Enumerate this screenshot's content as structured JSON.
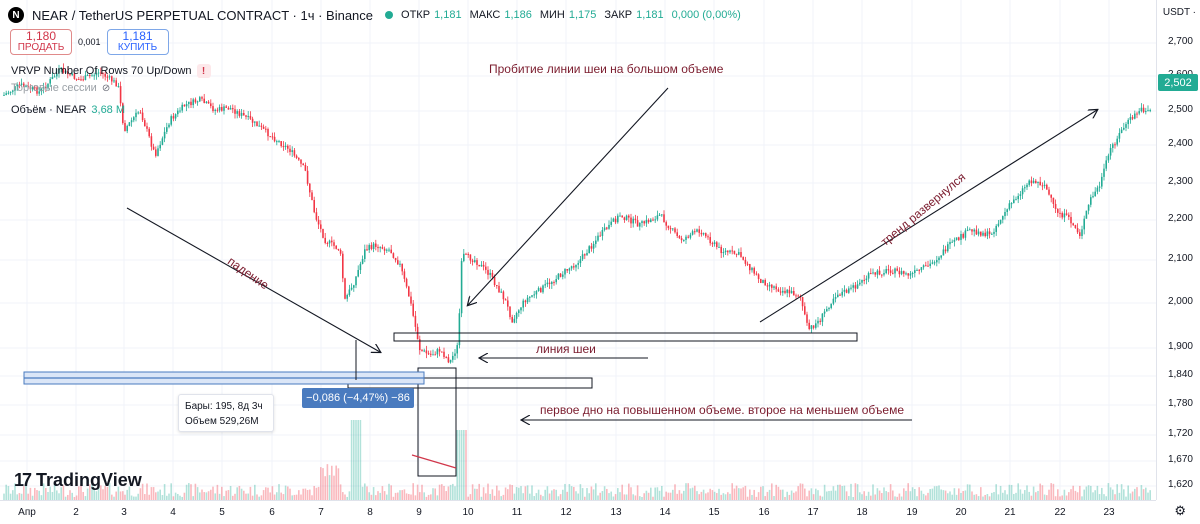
{
  "header": {
    "logo_letter": "N",
    "title": "NEAR / TetherUS PERPETUAL CONTRACT · 1ч · Binance",
    "ohlc": {
      "open_label": "ОТКР",
      "open": "1,181",
      "high_label": "МАКС",
      "high": "1,186",
      "low_label": "МИН",
      "low": "1,175",
      "close_label": "ЗАКР",
      "close": "1,181",
      "change": "0,000 (0,00%)"
    }
  },
  "trade": {
    "sell_price": "1,180",
    "sell_label": "ПРОДАТЬ",
    "spread": "0,001",
    "buy_price": "1,181",
    "buy_label": "КУПИТЬ"
  },
  "indicators": {
    "vrvp": "VRVP Number Of Rows 70 Up/Down",
    "sessions": "Торговые сессии",
    "volume_name": "Объём · NEAR",
    "volume_value": "3,68 M"
  },
  "price_axis": {
    "currency": "USDT ·",
    "ticks": [
      "2,700",
      "2,600",
      "2,500",
      "2,400",
      "2,300",
      "2,200",
      "2,100",
      "2,000",
      "1,900",
      "1,840",
      "1,780",
      "1,720",
      "1,670",
      "1,620"
    ],
    "last_price": "2,502"
  },
  "time_axis": {
    "ticks": [
      "Апр",
      "2",
      "3",
      "4",
      "5",
      "6",
      "7",
      "8",
      "9",
      "10",
      "11",
      "12",
      "13",
      "14",
      "15",
      "16",
      "17",
      "18",
      "19",
      "20",
      "21",
      "22",
      "23"
    ]
  },
  "annotations": {
    "neck_break": "Пробитие линии шеи на большом объеме",
    "neckline": "линия шеи",
    "bottoms": "первое дно на повышенном объеме. второе на меньшем объеме",
    "fall": "падение",
    "trend": "тренд развернулся"
  },
  "measure": {
    "change_label": "−0,086 (−4,47%) −86",
    "bars": "Бары: 195, 8д 3ч",
    "volume": "Объем 529,26M"
  },
  "brand": {
    "name": "TradingView"
  },
  "colors": {
    "up": "#22ab94",
    "down": "#f23645",
    "annotation": "#7b1c2e",
    "measure": "#4a7bbf"
  }
}
